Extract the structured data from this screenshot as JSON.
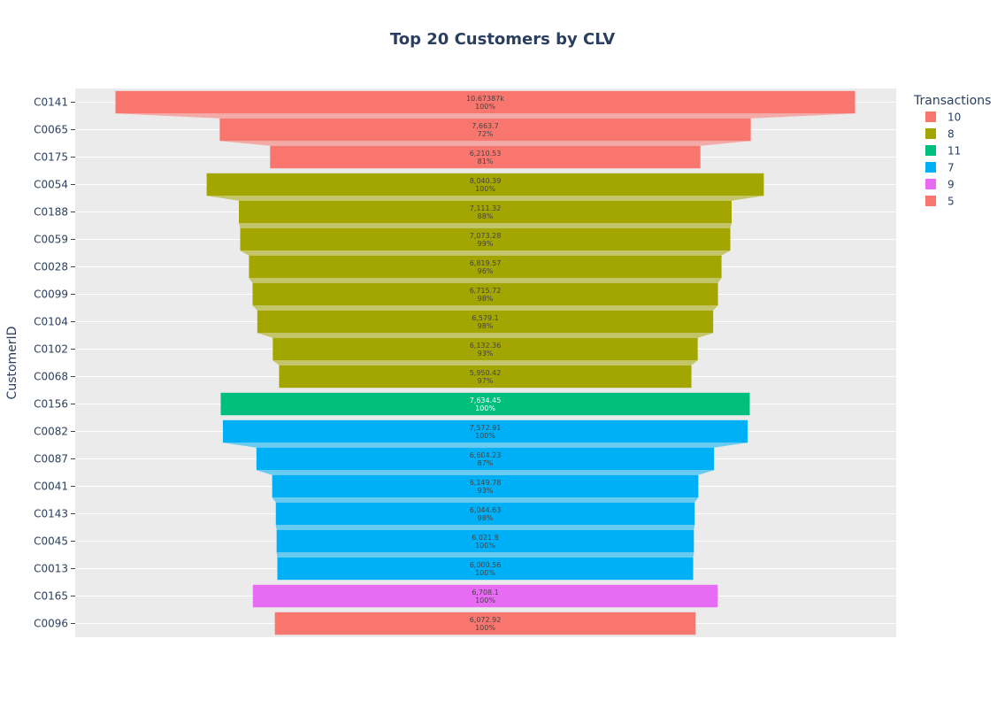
{
  "chart_data": {
    "type": "funnel",
    "title": "Top 20 Customers by CLV",
    "ylabel": "CustomerID",
    "legend": {
      "title": "Transactions",
      "placement": "top-right",
      "entries": [
        {
          "name": "10",
          "color": "#F8766D"
        },
        {
          "name": "8",
          "color": "#A3A500"
        },
        {
          "name": "11",
          "color": "#00BF7D"
        },
        {
          "name": "7",
          "color": "#00B0F6"
        },
        {
          "name": "9",
          "color": "#E76BF3"
        },
        {
          "name": "5",
          "color": "#F8766D"
        }
      ]
    },
    "grid": true,
    "series": [
      {
        "name": "10",
        "color": "#F8766D",
        "points": [
          {
            "customer": "C0141",
            "value": 10673.87,
            "label": "10.67387k",
            "percent": "100%"
          },
          {
            "customer": "C0065",
            "value": 7663.7,
            "label": "7,663.7",
            "percent": "72%"
          },
          {
            "customer": "C0175",
            "value": 6210.53,
            "label": "6,210.53",
            "percent": "81%"
          }
        ]
      },
      {
        "name": "8",
        "color": "#A3A500",
        "points": [
          {
            "customer": "C0054",
            "value": 8040.39,
            "label": "8,040.39",
            "percent": "100%"
          },
          {
            "customer": "C0188",
            "value": 7111.32,
            "label": "7,111.32",
            "percent": "88%"
          },
          {
            "customer": "C0059",
            "value": 7073.28,
            "label": "7,073.28",
            "percent": "99%"
          },
          {
            "customer": "C0028",
            "value": 6819.57,
            "label": "6,819.57",
            "percent": "96%"
          },
          {
            "customer": "C0099",
            "value": 6715.72,
            "label": "6,715.72",
            "percent": "98%"
          },
          {
            "customer": "C0104",
            "value": 6579.1,
            "label": "6,579.1",
            "percent": "98%"
          },
          {
            "customer": "C0102",
            "value": 6132.36,
            "label": "6,132.36",
            "percent": "93%"
          },
          {
            "customer": "C0068",
            "value": 5950.42,
            "label": "5,950.42",
            "percent": "97%"
          }
        ]
      },
      {
        "name": "11",
        "color": "#00BF7D",
        "points": [
          {
            "customer": "C0156",
            "value": 7634.45,
            "label": "7,634.45",
            "percent": "100%"
          }
        ]
      },
      {
        "name": "7",
        "color": "#00B0F6",
        "points": [
          {
            "customer": "C0082",
            "value": 7572.91,
            "label": "7,572.91",
            "percent": "100%"
          },
          {
            "customer": "C0087",
            "value": 6604.23,
            "label": "6,604.23",
            "percent": "87%"
          },
          {
            "customer": "C0041",
            "value": 6149.78,
            "label": "6,149.78",
            "percent": "93%"
          },
          {
            "customer": "C0143",
            "value": 6044.63,
            "label": "6,044.63",
            "percent": "98%"
          },
          {
            "customer": "C0045",
            "value": 6021.8,
            "label": "6,021.8",
            "percent": "100%"
          },
          {
            "customer": "C0013",
            "value": 6000.56,
            "label": "6,000.56",
            "percent": "100%"
          }
        ]
      },
      {
        "name": "9",
        "color": "#E76BF3",
        "points": [
          {
            "customer": "C0165",
            "value": 6708.1,
            "label": "6,708.1",
            "percent": "100%"
          }
        ]
      },
      {
        "name": "5",
        "color": "#F8766D",
        "points": [
          {
            "customer": "C0096",
            "value": 6072.92,
            "label": "6,072.92",
            "percent": "100%"
          }
        ]
      }
    ]
  }
}
